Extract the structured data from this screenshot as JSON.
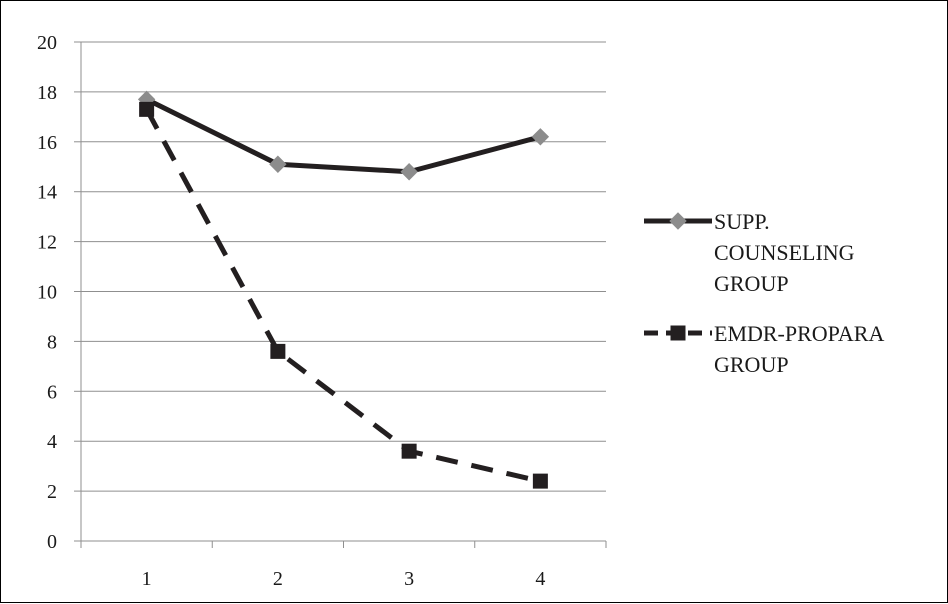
{
  "chart_data": {
    "type": "line",
    "title": "",
    "xlabel": "",
    "ylabel": "",
    "categories": [
      "1",
      "2",
      "3",
      "4"
    ],
    "ylim": [
      0,
      20
    ],
    "yticks": [
      0,
      2,
      4,
      6,
      8,
      10,
      12,
      14,
      16,
      18,
      20
    ],
    "grid": true,
    "legend_position": "right",
    "series": [
      {
        "name_lines": [
          "SUPP.",
          "COUNSELING",
          "GROUP"
        ],
        "values": [
          17.7,
          15.1,
          14.8,
          16.2
        ],
        "line_style": "solid",
        "line_color": "#231f20",
        "marker": "diamond",
        "marker_color": "#8c8c8c"
      },
      {
        "name_lines": [
          "EMDR-PROPARA",
          "GROUP"
        ],
        "values": [
          17.3,
          7.6,
          3.6,
          2.4
        ],
        "line_style": "dashed",
        "line_color": "#231f20",
        "marker": "square",
        "marker_color": "#231f20"
      }
    ]
  }
}
